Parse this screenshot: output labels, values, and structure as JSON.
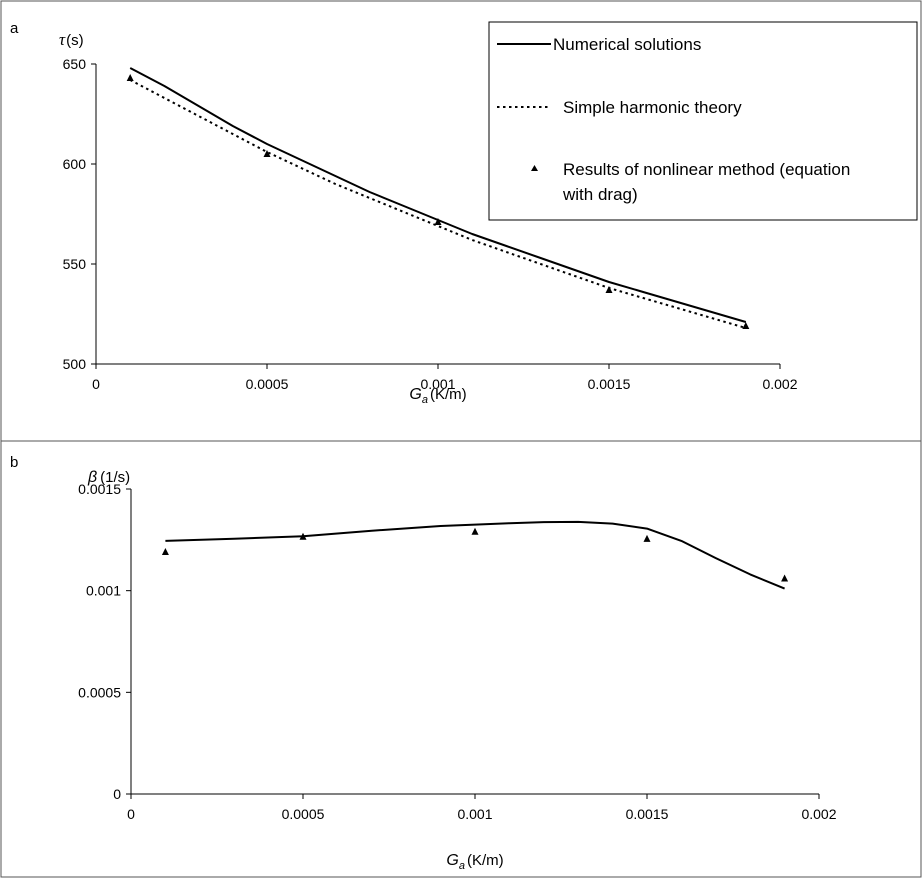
{
  "chart_data": [
    {
      "panel_label": "a",
      "type": "line",
      "xlabel": {
        "symbol": "G",
        "subscript": "a",
        "unit": "(K/m)"
      },
      "ylabel": {
        "symbol": "τ",
        "unit": "(s)"
      },
      "xlim": [
        0,
        0.002
      ],
      "ylim": [
        500,
        650
      ],
      "xticks": [
        0,
        0.0005,
        0.001,
        0.0015,
        0.002
      ],
      "xtick_labels": [
        "0",
        "0.0005",
        "0.001",
        "0.0015",
        "0.002"
      ],
      "yticks": [
        500,
        550,
        600,
        650
      ],
      "ytick_labels": [
        "500",
        "550",
        "600",
        "650"
      ],
      "legend_position": "top-right",
      "series": [
        {
          "name": "Numerical solutions",
          "style": "solid",
          "x": [
            0.0001,
            0.0002,
            0.0003,
            0.0004,
            0.0005,
            0.0006,
            0.0007,
            0.0008,
            0.0009,
            0.001,
            0.0011,
            0.0012,
            0.0013,
            0.0014,
            0.0015,
            0.0016,
            0.0017,
            0.0018,
            0.0019
          ],
          "y": [
            648,
            639,
            629,
            619,
            610,
            602,
            594,
            586,
            579,
            572,
            565,
            559,
            553,
            547,
            541,
            536,
            531,
            526,
            521
          ]
        },
        {
          "name": "Simple harmonic theory",
          "style": "dotted",
          "x": [
            0.0001,
            0.0002,
            0.0003,
            0.0004,
            0.0005,
            0.0006,
            0.0007,
            0.0008,
            0.0009,
            0.001,
            0.0011,
            0.0012,
            0.0013,
            0.0014,
            0.0015,
            0.0016,
            0.0017,
            0.0018,
            0.0019
          ],
          "y": [
            642,
            633,
            624,
            615,
            606,
            598,
            590,
            583,
            576,
            569,
            562,
            556,
            550,
            544,
            538,
            533,
            528,
            523,
            518
          ]
        },
        {
          "name": "Results of nonlinear method (equation with drag)",
          "style": "triangle-markers",
          "x": [
            0.0001,
            0.0005,
            0.001,
            0.0015,
            0.0019
          ],
          "y": [
            643,
            605,
            571,
            537,
            519
          ]
        }
      ]
    },
    {
      "panel_label": "b",
      "type": "line",
      "xlabel": {
        "symbol": "G",
        "subscript": "a",
        "unit": "(K/m)"
      },
      "ylabel": {
        "symbol": "β",
        "unit": "(1/s)"
      },
      "xlim": [
        0,
        0.002
      ],
      "ylim": [
        0,
        0.0015
      ],
      "xticks": [
        0,
        0.0005,
        0.001,
        0.0015,
        0.002
      ],
      "xtick_labels": [
        "0",
        "0.0005",
        "0.001",
        "0.0015",
        "0.002"
      ],
      "yticks": [
        0,
        0.0005,
        0.001,
        0.0015
      ],
      "ytick_labels": [
        "0",
        "0.0005",
        "0.001",
        "0.0015"
      ],
      "series": [
        {
          "name": "Numerical solutions",
          "style": "solid",
          "x": [
            0.0001,
            0.0003,
            0.0005,
            0.0007,
            0.0009,
            0.001,
            0.0011,
            0.0012,
            0.0013,
            0.0014,
            0.0015,
            0.0016,
            0.0017,
            0.0018,
            0.0019
          ],
          "y": [
            0.001245,
            0.001255,
            0.001268,
            0.001295,
            0.001318,
            0.001325,
            0.001332,
            0.001337,
            0.001338,
            0.00133,
            0.001305,
            0.001245,
            0.00116,
            0.00108,
            0.00101
          ]
        },
        {
          "name": "Results of nonlinear method (equation with drag)",
          "style": "triangle-markers",
          "x": [
            0.0001,
            0.0005,
            0.001,
            0.0015,
            0.0019
          ],
          "y": [
            0.00119,
            0.001265,
            0.00129,
            0.001255,
            0.00106
          ]
        }
      ]
    }
  ]
}
